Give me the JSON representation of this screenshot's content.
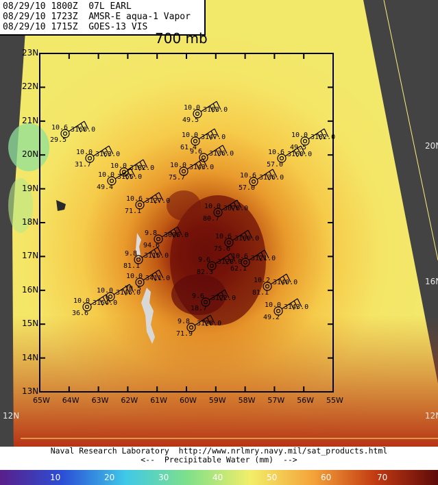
{
  "header": {
    "line1": "08/29/10 1800Z  07L EARL",
    "line2": "08/29/10 1723Z  AMSR-E aqua-1 Vapor",
    "line3": "08/29/10 1715Z  GOES-13 VIS"
  },
  "level_label": "700 mb",
  "lat_labels": [
    "23N",
    "22N",
    "21N",
    "20N",
    "19N",
    "18N",
    "17N",
    "16N",
    "15N",
    "14N",
    "13N"
  ],
  "lon_labels": [
    "65W",
    "64W",
    "63W",
    "62W",
    "61W",
    "60W",
    "59W",
    "58W",
    "57W",
    "56W",
    "55W"
  ],
  "outer_lat_labels": [
    "20N",
    "16N",
    "12N",
    "12N"
  ],
  "credit": {
    "line1": "Naval Research Laboratory  http://www.nrlmry.navy.mil/sat_products.html",
    "line2": "<--  Precipitable Water (mm)  -->"
  },
  "colorbar": {
    "ticks": [
      "10",
      "20",
      "30",
      "40",
      "50",
      "60",
      "70"
    ],
    "colors": [
      "#5a1f8a",
      "#2b4fd6",
      "#3fc8e8",
      "#7fe08a",
      "#f2ee6a",
      "#f4a33a",
      "#c23a12",
      "#5e0a0a"
    ]
  },
  "observations": [
    {
      "id": "obs-1",
      "p": "3168.0",
      "t": "10.6",
      "d": "29.5"
    },
    {
      "id": "obs-2",
      "p": "3183.0",
      "t": "10.0",
      "d": "49.5"
    },
    {
      "id": "obs-3",
      "p": "3147.0",
      "t": "10.0",
      "d": "61.4"
    },
    {
      "id": "obs-4",
      "p": "3136.0",
      "t": "9.6",
      "d": ""
    },
    {
      "id": "obs-5",
      "p": "3163.0",
      "t": "10.0",
      "d": "31.7"
    },
    {
      "id": "obs-6",
      "p": "3182.0",
      "t": "10.0",
      "d": ""
    },
    {
      "id": "obs-7",
      "p": "3155.0",
      "t": "10.0",
      "d": "49.4"
    },
    {
      "id": "obs-8",
      "p": "3143.0",
      "t": "10.0",
      "d": "75.7"
    },
    {
      "id": "obs-9",
      "p": "3160.0",
      "t": "10.6",
      "d": "57.0"
    },
    {
      "id": "obs-10",
      "p": "3182.0",
      "t": "10.0",
      "d": "49.5"
    },
    {
      "id": "obs-11",
      "p": "3136.0",
      "t": "10.6",
      "d": "57.0"
    },
    {
      "id": "obs-12",
      "p": "3127.0",
      "t": "10.6",
      "d": "71.1"
    },
    {
      "id": "obs-13",
      "p": "3078.0",
      "t": "10.0",
      "d": "80.7"
    },
    {
      "id": "obs-14",
      "p": "3096.0",
      "t": "9.8",
      "d": "94.6"
    },
    {
      "id": "obs-15",
      "p": "3100.0",
      "t": "10.6",
      "d": "75.6"
    },
    {
      "id": "obs-16",
      "p": "3115.0",
      "t": "9.8",
      "d": "81.1"
    },
    {
      "id": "obs-17",
      "p": "3121.0",
      "t": "10.6",
      "d": "62.1"
    },
    {
      "id": "obs-18",
      "p": "3128.0",
      "t": "9.6",
      "d": "82.3"
    },
    {
      "id": "obs-19",
      "p": "3411.0",
      "t": "10.0",
      "d": "70.5"
    },
    {
      "id": "obs-20",
      "p": "3140.0",
      "t": "10.2",
      "d": "81.1"
    },
    {
      "id": "obs-21",
      "p": "3146.0",
      "t": "10.0",
      "d": ""
    },
    {
      "id": "obs-22",
      "p": "3154.0",
      "t": "10.0",
      "d": "36.6"
    },
    {
      "id": "obs-23",
      "p": "3122.0",
      "t": "9.6",
      "d": "18.7"
    },
    {
      "id": "obs-24",
      "p": "3143.0",
      "t": "10.0",
      "d": "49.2"
    },
    {
      "id": "obs-25",
      "p": "3128.0",
      "t": "9.8",
      "d": "71.9"
    }
  ]
}
